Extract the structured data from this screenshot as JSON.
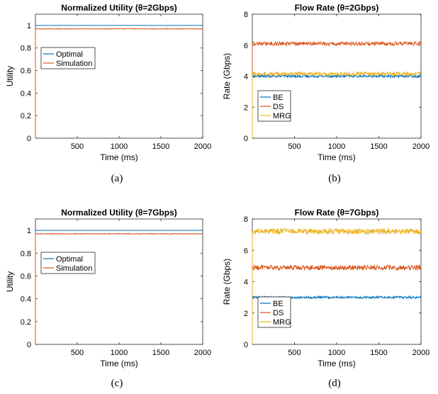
{
  "colors": {
    "blue": "#0072BD",
    "orange": "#D95319",
    "yellow": "#EDB120",
    "axis": "#262626"
  },
  "chart_data": [
    {
      "type": "line",
      "title": "Normalized Utility (θ=2Gbps)",
      "xlabel": "Time (ms)",
      "ylabel": "Utility",
      "xlim": [
        0,
        2000
      ],
      "ylim": [
        0,
        1.1
      ],
      "xticks": [
        "500",
        "1000",
        "1500",
        "2000"
      ],
      "yticks": [
        "0",
        "0.2",
        "0.4",
        "0.6",
        "0.8",
        "1"
      ],
      "legend_position": "upper-left",
      "caption": "(a)",
      "series": [
        {
          "name": "Optimal",
          "color": "blue",
          "y": 1.0,
          "noise": 0.0
        },
        {
          "name": "Simulation",
          "color": "orange",
          "y": 0.97,
          "noise": 0.003
        }
      ]
    },
    {
      "type": "line",
      "title": "Flow Rate (θ=2Gbps)",
      "xlabel": "Time (ms)",
      "ylabel": "Rate (Gbps)",
      "xlim": [
        0,
        2000
      ],
      "ylim": [
        0,
        8
      ],
      "xticks": [
        "500",
        "1000",
        "1500",
        "2000"
      ],
      "yticks": [
        "0",
        "2",
        "4",
        "6",
        "8"
      ],
      "legend_position": "lower-left",
      "caption": "(b)",
      "series": [
        {
          "name": "BE",
          "color": "blue",
          "y": 4.0,
          "noise": 0.08
        },
        {
          "name": "DS",
          "color": "orange",
          "y": 6.1,
          "noise": 0.12
        },
        {
          "name": "MRG",
          "color": "yellow",
          "y": 4.15,
          "noise": 0.12
        }
      ]
    },
    {
      "type": "line",
      "title": "Normalized Utility (θ=7Gbps)",
      "xlabel": "Time (ms)",
      "ylabel": "Utility",
      "xlim": [
        0,
        2000
      ],
      "ylim": [
        0,
        1.1
      ],
      "xticks": [
        "500",
        "1000",
        "1500",
        "2000"
      ],
      "yticks": [
        "0",
        "0.2",
        "0.4",
        "0.6",
        "0.8",
        "1"
      ],
      "legend_position": "upper-left",
      "caption": "(c)",
      "series": [
        {
          "name": "Optimal",
          "color": "blue",
          "y": 1.0,
          "noise": 0.0
        },
        {
          "name": "Simulation",
          "color": "orange",
          "y": 0.97,
          "noise": 0.003
        }
      ]
    },
    {
      "type": "line",
      "title": "Flow Rate (θ=7Gbps)",
      "xlabel": "Time (ms)",
      "ylabel": "Rate (Gbps)",
      "xlim": [
        0,
        2000
      ],
      "ylim": [
        0,
        8
      ],
      "xticks": [
        "500",
        "1000",
        "1500",
        "2000"
      ],
      "yticks": [
        "0",
        "2",
        "4",
        "6",
        "8"
      ],
      "legend_position": "lower-left",
      "caption": "(d)",
      "series": [
        {
          "name": "BE",
          "color": "blue",
          "y": 3.0,
          "noise": 0.07
        },
        {
          "name": "DS",
          "color": "orange",
          "y": 4.9,
          "noise": 0.15
        },
        {
          "name": "MRG",
          "color": "yellow",
          "y": 7.2,
          "noise": 0.18
        }
      ]
    }
  ]
}
